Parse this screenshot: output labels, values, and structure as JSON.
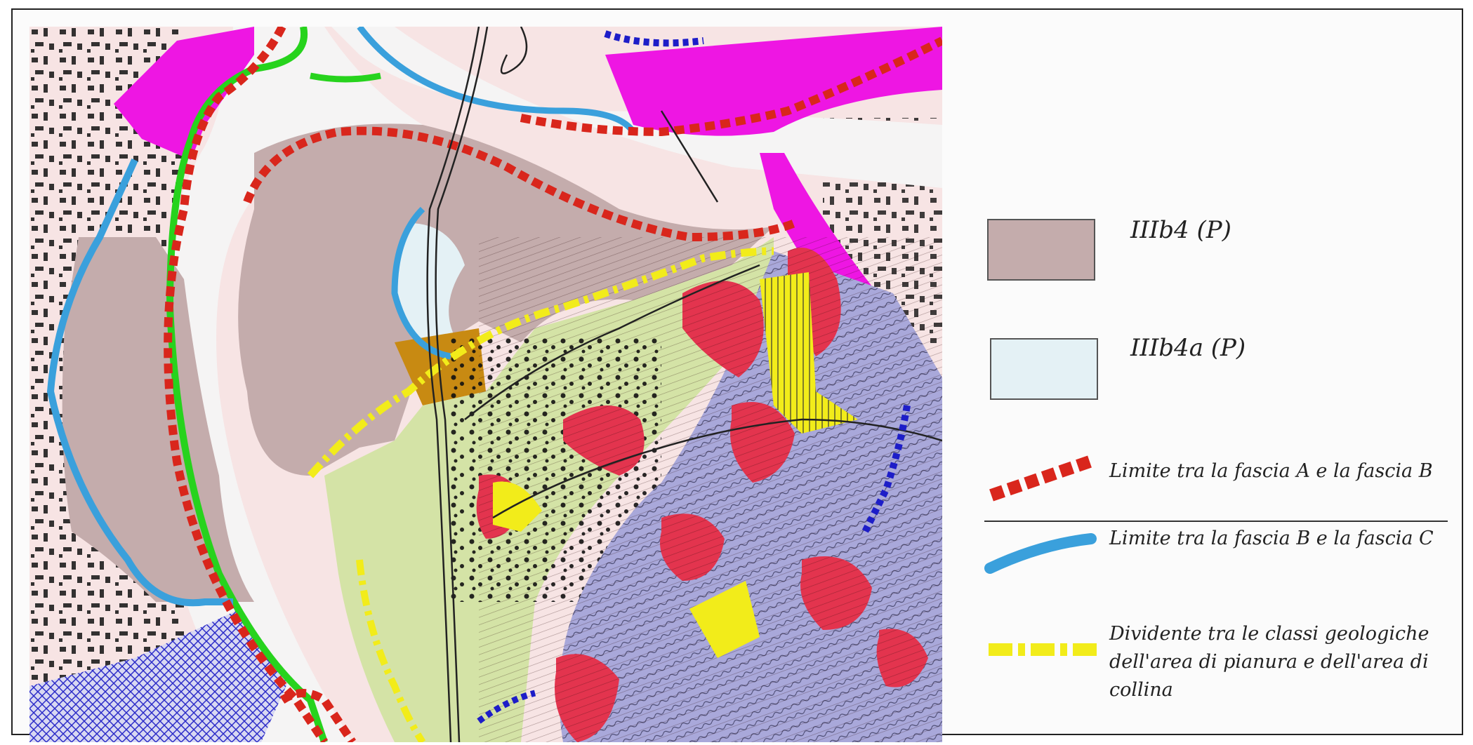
{
  "legend": {
    "items": [
      {
        "label": "IIIb4 (P)",
        "color": "#c4acac"
      },
      {
        "label": "IIIb4a (P)",
        "color": "#e4f1f5"
      },
      {
        "label": "Limite tra la fascia A e la fascia B",
        "color": "#d9261c"
      },
      {
        "label": "Limite tra la fascia B e la fascia C",
        "color": "#3aa0dc"
      },
      {
        "label": "Dividente tra le classi geologiche dell'area di pianura e dell'area di collina",
        "color": "#f2ec1a"
      }
    ]
  },
  "map_colors": {
    "river": "#f5f4f4",
    "urban": "#f7e4e4",
    "plain": "#d4e3a6",
    "hill": "#a9a8da",
    "hazard": "#e3344e",
    "magenta": "#ee16e3",
    "green_line": "#27d31d",
    "orange_zone": "#c88a12",
    "blue_hatch": "#2b2bc8"
  }
}
